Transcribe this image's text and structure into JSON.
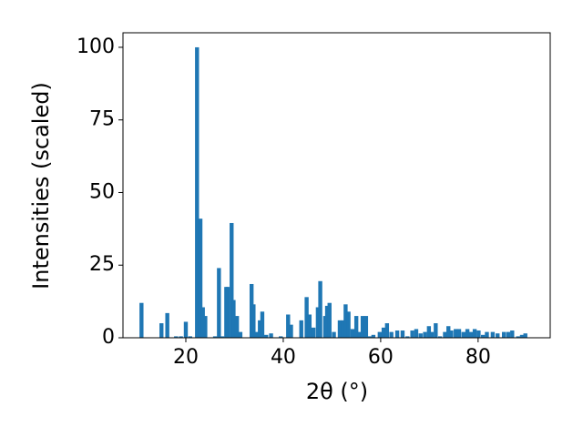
{
  "chart_data": {
    "type": "bar",
    "x_label": "2θ (°)",
    "y_label": "Intensities (scaled)",
    "color": "#1f77b4",
    "x": [
      10.9,
      15.0,
      16.2,
      18.0,
      19.0,
      20.0,
      20.9,
      22.3,
      23.0,
      23.5,
      24.0,
      26.0,
      26.8,
      27.5,
      28.3,
      28.6,
      29.4,
      29.8,
      30.5,
      31.2,
      33.5,
      33.9,
      34.5,
      35.2,
      35.7,
      36.5,
      37.5,
      39.5,
      41.0,
      41.6,
      43.7,
      44.8,
      45.4,
      46.2,
      47.1,
      47.6,
      48.6,
      49.0,
      49.5,
      50.4,
      51.6,
      52.3,
      52.8,
      53.4,
      54.2,
      55.0,
      55.6,
      56.3,
      57.0,
      57.8,
      58.5,
      59.8,
      60.6,
      61.3,
      62.2,
      63.4,
      64.5,
      65.5,
      66.5,
      67.3,
      68.2,
      69.1,
      69.9,
      70.5,
      71.3,
      72.2,
      73.2,
      73.9,
      74.5,
      75.4,
      76.1,
      77.0,
      77.8,
      78.5,
      79.3,
      80.1,
      81.0,
      81.8,
      83.0,
      84.0,
      85.3,
      86.2,
      87.0,
      88.2,
      89.0,
      89.7
    ],
    "values": [
      12,
      5,
      8.5,
      0.5,
      0.5,
      5.5,
      0.5,
      100,
      41,
      10.5,
      7.5,
      0.5,
      24,
      0.5,
      17.5,
      17.5,
      39.5,
      13,
      7.5,
      2,
      18.5,
      11.5,
      2,
      6,
      9,
      1,
      1.5,
      0.5,
      8,
      4.5,
      6,
      14,
      8,
      3.5,
      10.5,
      19.5,
      7.5,
      11,
      12,
      2,
      6,
      6,
      11.5,
      9,
      3,
      7.5,
      2,
      7.5,
      7.5,
      0.5,
      1,
      2,
      3.5,
      5,
      2,
      2.5,
      2.5,
      0.5,
      2.5,
      3,
      1.5,
      2,
      4,
      2,
      5,
      0.5,
      2,
      4,
      2.5,
      3,
      3,
      2,
      3,
      2,
      3,
      2.5,
      1,
      2,
      2,
      1.5,
      2,
      2,
      2.5,
      0.5,
      1,
      1.5
    ],
    "xlim": [
      7.1,
      94.8
    ],
    "xticks": [
      20,
      40,
      60,
      80
    ],
    "ylim": [
      0,
      105
    ],
    "yticks": [
      0,
      25,
      50,
      75,
      100
    ]
  }
}
